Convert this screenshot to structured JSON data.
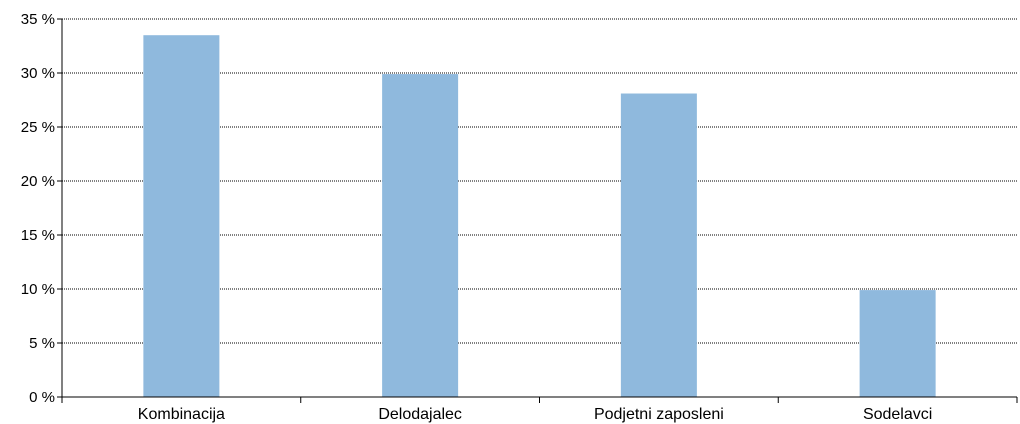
{
  "chart_data": {
    "type": "bar",
    "categories": [
      "Kombinacija",
      "Delodajalec",
      "Podjetni zaposleni",
      "Sodelavci"
    ],
    "values": [
      33.5,
      29.9,
      28.1,
      9.9
    ],
    "ylim": [
      0,
      35
    ],
    "yticks": [
      0,
      5,
      10,
      15,
      20,
      25,
      30,
      35
    ],
    "ytick_labels": [
      "0 %",
      "5 %",
      "10 %",
      "15 %",
      "20 %",
      "25 %",
      "30 %",
      "35 %"
    ],
    "grid": true,
    "bar_color": "#8fb9dd",
    "grid_color": "#000000",
    "axis_color": "#000000"
  }
}
